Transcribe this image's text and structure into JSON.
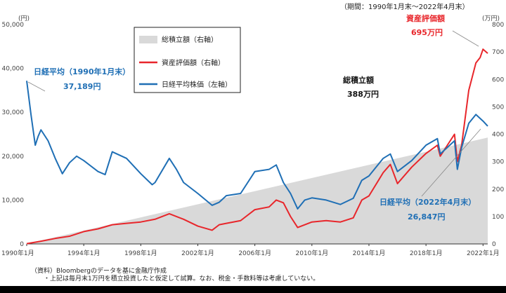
{
  "chart_data": {
    "type": "line",
    "title": "",
    "period": "（期間：1990年1月末～2022年4月末）",
    "left_axis": {
      "unit": "(円)",
      "ylim": [
        0,
        50000
      ],
      "ticks": [
        "0",
        "10,000",
        "20,000",
        "30,000",
        "40,000",
        "50,000"
      ]
    },
    "right_axis": {
      "unit": "(万円)",
      "ylim": [
        0,
        800
      ],
      "ticks": [
        "0",
        "100",
        "200",
        "300",
        "400",
        "500",
        "600",
        "700",
        "800"
      ]
    },
    "x_ticks": [
      "1990年1月",
      "1994年1月",
      "1998年1月",
      "2002年1月",
      "2006年1月",
      "2010年1月",
      "2014年1月",
      "2018年1月",
      "2022年1月"
    ],
    "x_tick_years": [
      1990,
      1994,
      1998,
      2002,
      2006,
      2010,
      2014,
      2018,
      2022
    ],
    "xlim": [
      1990.0,
      2022.33
    ],
    "legend": {
      "position": "top-center",
      "items": [
        {
          "label": "総積立額（右軸）",
          "color": "#d9d9d9",
          "kind": "area"
        },
        {
          "label": "資産評価額（右軸）",
          "color": "#e8262b",
          "kind": "line"
        },
        {
          "label": "日経平均株価（左軸）",
          "color": "#1f6fb5",
          "kind": "line"
        }
      ]
    },
    "series": [
      {
        "name": "総積立額（右軸）",
        "axis": "right",
        "type": "area",
        "color": "#d9d9d9",
        "x": [
          1990.0,
          2022.33
        ],
        "y": [
          1,
          388
        ]
      },
      {
        "name": "資産評価額（右軸）",
        "axis": "right",
        "type": "line",
        "color": "#e8262b",
        "x": [
          1990.0,
          1991.0,
          1992.0,
          1993.0,
          1994.0,
          1995.0,
          1996.0,
          1997.0,
          1998.0,
          1999.0,
          2000.0,
          2001.0,
          2002.0,
          2003.0,
          2003.5,
          2004.0,
          2005.0,
          2006.0,
          2007.0,
          2007.5,
          2008.0,
          2008.5,
          2009.0,
          2010.0,
          2011.0,
          2012.0,
          2012.9,
          2013.5,
          2014.0,
          2015.0,
          2015.5,
          2016.0,
          2017.0,
          2018.0,
          2018.8,
          2019.0,
          2020.0,
          2020.2,
          2020.5,
          2021.0,
          2021.2,
          2021.5,
          2021.8,
          2022.0,
          2022.33
        ],
        "y": [
          1,
          10,
          20,
          28,
          45,
          55,
          70,
          75,
          80,
          90,
          110,
          90,
          65,
          50,
          70,
          75,
          85,
          125,
          135,
          160,
          150,
          100,
          60,
          80,
          85,
          80,
          95,
          160,
          175,
          260,
          290,
          220,
          280,
          330,
          360,
          320,
          400,
          300,
          360,
          560,
          600,
          660,
          680,
          710,
          695
        ]
      },
      {
        "name": "日経平均株価（左軸）",
        "axis": "left",
        "type": "line",
        "color": "#1f6fb5",
        "x": [
          1990.0,
          1990.3,
          1990.6,
          1990.8,
          1991.0,
          1991.5,
          1992.0,
          1992.5,
          1993.0,
          1993.5,
          1994.0,
          1995.0,
          1995.5,
          1996.0,
          1997.0,
          1998.0,
          1998.8,
          1999.0,
          2000.0,
          2000.5,
          2001.0,
          2002.0,
          2003.0,
          2003.5,
          2004.0,
          2005.0,
          2006.0,
          2007.0,
          2007.5,
          2008.0,
          2008.5,
          2009.0,
          2009.5,
          2010.0,
          2011.0,
          2012.0,
          2012.9,
          2013.5,
          2014.0,
          2015.0,
          2015.5,
          2016.0,
          2017.0,
          2018.0,
          2018.8,
          2019.0,
          2020.0,
          2020.2,
          2020.5,
          2021.0,
          2021.5,
          2022.0,
          2022.33
        ],
        "y": [
          37189,
          29500,
          22500,
          24500,
          26000,
          23500,
          19500,
          16000,
          18500,
          20000,
          19000,
          16500,
          15800,
          21000,
          19500,
          16000,
          13500,
          14000,
          19500,
          17000,
          14000,
          11500,
          8800,
          9500,
          11000,
          11500,
          16500,
          17000,
          18000,
          14000,
          11500,
          8000,
          10000,
          10500,
          10000,
          9000,
          10400,
          14500,
          15500,
          19500,
          20500,
          16500,
          19000,
          22500,
          24000,
          20500,
          23500,
          17000,
          22000,
          27500,
          29500,
          28000,
          26847
        ]
      }
    ],
    "annotations": {
      "nikkei_start": {
        "label": "日経平均（1990年1月末）",
        "value": "37,189円"
      },
      "nikkei_end": {
        "label": "日経平均（2022年4月末）",
        "value": "26,847円"
      },
      "total_contrib": {
        "label": "総積立額",
        "value": "388万円"
      },
      "asset_value": {
        "label": "資産評価額",
        "value": "695万円"
      }
    },
    "source_note": "（資料）Bloombergのデータを基に金融庁作成",
    "assumption_note": "・上記は毎月末1万円を積立投資したと仮定して試算。なお、税金・手数料等は考慮していない。"
  }
}
